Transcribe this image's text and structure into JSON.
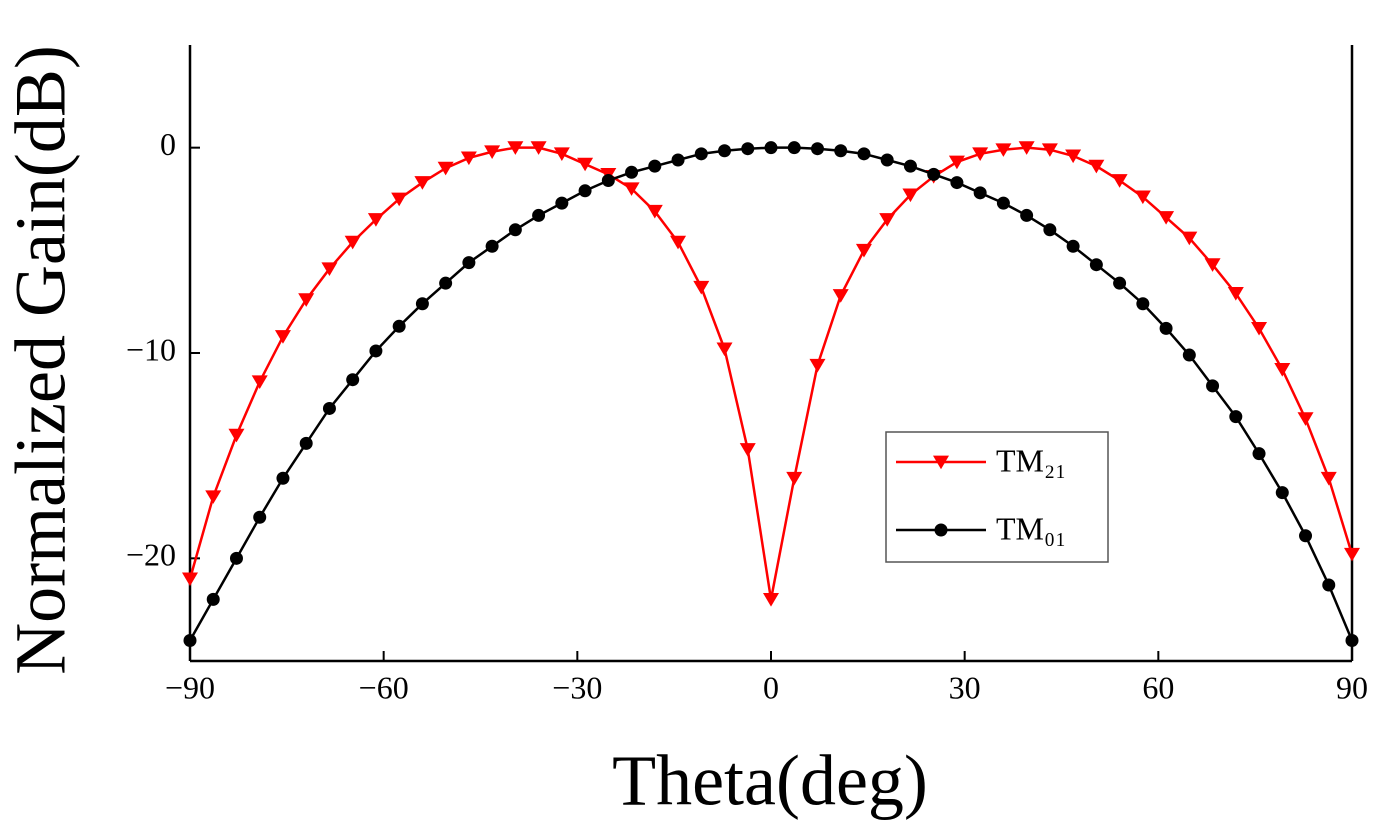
{
  "chart_data": {
    "type": "line",
    "xlabel": "Theta(deg)",
    "ylabel": "Normalized Gain(dB)",
    "x": [
      -90,
      -86.4,
      -82.8,
      -79.2,
      -75.6,
      -72,
      -68.4,
      -64.8,
      -61.2,
      -57.6,
      -54,
      -50.4,
      -46.8,
      -43.2,
      -39.6,
      -36,
      -32.4,
      -28.8,
      -25.2,
      -21.6,
      -18,
      -14.4,
      -10.8,
      -7.2,
      -3.6,
      0,
      3.6,
      7.2,
      10.8,
      14.4,
      18,
      21.6,
      25.2,
      28.8,
      32.4,
      36,
      39.6,
      43.2,
      46.8,
      50.4,
      54,
      57.6,
      61.2,
      64.8,
      68.4,
      72,
      75.6,
      79.2,
      82.8,
      86.4,
      90
    ],
    "series": [
      {
        "name": "TM₂₁",
        "color": "#ff0000",
        "marker": "triangle-down",
        "values": [
          -21,
          -17,
          -14,
          -11.4,
          -9.2,
          -7.4,
          -5.9,
          -4.6,
          -3.5,
          -2.5,
          -1.7,
          -1.0,
          -0.5,
          -0.2,
          0,
          0,
          -0.3,
          -0.8,
          -1.3,
          -2.0,
          -3.1,
          -4.6,
          -6.8,
          -9.8,
          -14.7,
          -22,
          -16.1,
          -10.6,
          -7.2,
          -5,
          -3.5,
          -2.3,
          -1.4,
          -0.7,
          -0.3,
          -0.1,
          0,
          -0.1,
          -0.4,
          -0.9,
          -1.6,
          -2.4,
          -3.4,
          -4.4,
          -5.7,
          -7.1,
          -8.8,
          -10.8,
          -13.2,
          -16.1,
          -19.8
        ]
      },
      {
        "name": "TM₀₁",
        "color": "#000000",
        "marker": "circle",
        "values": [
          -24,
          -22,
          -20,
          -18,
          -16.1,
          -14.4,
          -12.7,
          -11.3,
          -9.9,
          -8.7,
          -7.6,
          -6.6,
          -5.6,
          -4.8,
          -4.0,
          -3.3,
          -2.7,
          -2.1,
          -1.6,
          -1.2,
          -0.9,
          -0.6,
          -0.3,
          -0.15,
          -0.05,
          0,
          0,
          -0.05,
          -0.15,
          -0.3,
          -0.6,
          -0.9,
          -1.3,
          -1.7,
          -2.2,
          -2.7,
          -3.3,
          -4.0,
          -4.8,
          -5.7,
          -6.6,
          -7.6,
          -8.8,
          -10.1,
          -11.6,
          -13.1,
          -14.9,
          -16.8,
          -18.9,
          -21.3,
          -24
        ]
      }
    ],
    "xlim": [
      -90,
      90
    ],
    "ylim": [
      -25,
      5
    ],
    "xticks": [
      {
        "value": -90,
        "label": "−90"
      },
      {
        "value": -60,
        "label": "−60"
      },
      {
        "value": -30,
        "label": "−30"
      },
      0,
      30,
      60,
      90
    ],
    "yticks": [
      {
        "value": -20,
        "label": "−20"
      },
      {
        "value": -10,
        "label": "−10"
      },
      0
    ],
    "legend": "lower right",
    "grid": false
  }
}
